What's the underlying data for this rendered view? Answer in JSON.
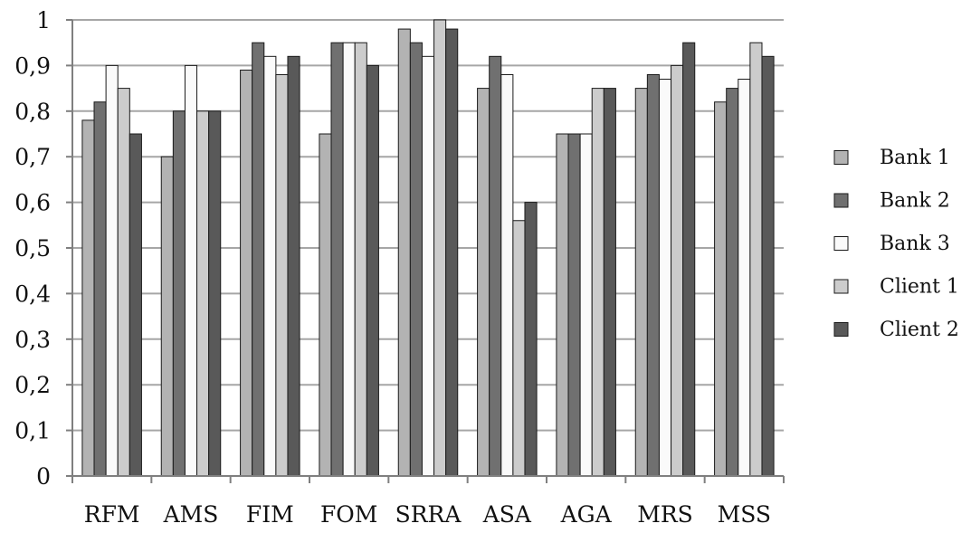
{
  "chart_data": {
    "type": "bar",
    "categories": [
      "RFM",
      "AMS",
      "FIM",
      "FOM",
      "SRRA",
      "ASA",
      "AGA",
      "MRS",
      "MSS"
    ],
    "series": [
      {
        "name": "Bank 1",
        "color": "#b3b3b3",
        "values": [
          0.78,
          0.7,
          0.89,
          0.75,
          0.98,
          0.85,
          0.75,
          0.85,
          0.82
        ]
      },
      {
        "name": "Bank 2",
        "color": "#707070",
        "values": [
          0.82,
          0.8,
          0.95,
          0.95,
          0.95,
          0.92,
          0.75,
          0.88,
          0.85
        ]
      },
      {
        "name": "Bank 3",
        "color": "#fafafa",
        "values": [
          0.9,
          0.9,
          0.92,
          0.95,
          0.92,
          0.88,
          0.75,
          0.87,
          0.87
        ]
      },
      {
        "name": "Client 1",
        "color": "#cccccc",
        "values": [
          0.85,
          0.8,
          0.88,
          0.95,
          1.0,
          0.56,
          0.85,
          0.9,
          0.95
        ]
      },
      {
        "name": "Client 2",
        "color": "#595959",
        "values": [
          0.75,
          0.8,
          0.92,
          0.9,
          0.98,
          0.6,
          0.85,
          0.95,
          0.92
        ]
      }
    ],
    "yticks": [
      "0",
      "0,1",
      "0,2",
      "0,3",
      "0,4",
      "0,5",
      "0,6",
      "0,7",
      "0,8",
      "0,9",
      "1"
    ],
    "ylim": [
      0,
      1
    ],
    "grid": true,
    "legend_position": "right"
  }
}
